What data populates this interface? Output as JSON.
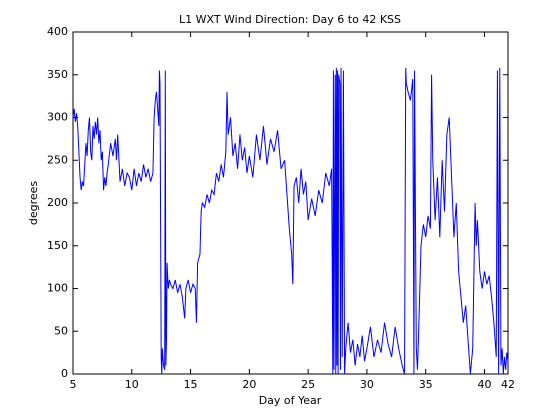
{
  "chart_data": {
    "type": "line",
    "title": "L1 WXT Wind Direction: Day 6 to 42 KSS",
    "xlabel": "Day of Year",
    "ylabel": "degrees",
    "xlim": [
      5,
      42
    ],
    "xticks": [
      5,
      10,
      15,
      20,
      25,
      30,
      35,
      40,
      42
    ],
    "ylim": [
      0,
      400
    ],
    "yticks": [
      0,
      50,
      100,
      150,
      200,
      250,
      300,
      350,
      400
    ],
    "grid": false,
    "x": [
      5.0,
      5.1,
      5.2,
      5.3,
      5.4,
      5.5,
      5.6,
      5.7,
      5.8,
      5.9,
      6.0,
      6.1,
      6.2,
      6.3,
      6.4,
      6.5,
      6.6,
      6.7,
      6.8,
      6.9,
      7.0,
      7.1,
      7.2,
      7.3,
      7.4,
      7.5,
      7.6,
      7.7,
      7.8,
      7.9,
      8.0,
      8.2,
      8.4,
      8.6,
      8.7,
      8.8,
      9.0,
      9.2,
      9.4,
      9.6,
      9.8,
      10.0,
      10.2,
      10.4,
      10.6,
      10.8,
      11.0,
      11.2,
      11.4,
      11.6,
      11.8,
      11.9,
      12.0,
      12.1,
      12.2,
      12.3,
      12.35,
      12.4,
      12.5,
      12.55,
      12.6,
      12.7,
      12.8,
      12.85,
      12.9,
      12.95,
      13.0,
      13.1,
      13.2,
      13.3,
      13.5,
      13.7,
      13.9,
      14.1,
      14.3,
      14.5,
      14.6,
      14.8,
      15.0,
      15.2,
      15.4,
      15.5,
      15.6,
      15.8,
      15.9,
      16.0,
      16.2,
      16.4,
      16.6,
      16.8,
      17.0,
      17.2,
      17.4,
      17.6,
      17.8,
      18.0,
      18.1,
      18.2,
      18.4,
      18.6,
      18.8,
      19.0,
      19.2,
      19.4,
      19.6,
      19.8,
      20.0,
      20.3,
      20.6,
      20.9,
      21.2,
      21.5,
      21.8,
      22.1,
      22.4,
      22.7,
      23.0,
      23.2,
      23.4,
      23.6,
      23.7,
      23.8,
      24.0,
      24.2,
      24.4,
      24.6,
      24.8,
      25.0,
      25.3,
      25.6,
      25.9,
      26.2,
      26.5,
      26.8,
      27.0,
      27.1,
      27.15,
      27.2,
      27.3,
      27.35,
      27.4,
      27.45,
      27.5,
      27.55,
      27.6,
      27.7,
      27.75,
      27.8,
      27.9,
      28.0,
      28.1,
      28.2,
      28.4,
      28.6,
      28.8,
      29.0,
      29.2,
      29.4,
      29.6,
      29.8,
      30.0,
      30.3,
      30.6,
      30.9,
      31.2,
      31.5,
      31.8,
      32.1,
      32.4,
      32.7,
      33.0,
      33.2,
      33.3,
      33.35,
      33.5,
      33.7,
      33.9,
      34.0,
      34.05,
      34.2,
      34.3,
      34.4,
      34.6,
      34.8,
      35.0,
      35.2,
      35.4,
      35.5,
      35.6,
      35.8,
      36.0,
      36.2,
      36.4,
      36.6,
      36.8,
      37.0,
      37.2,
      37.4,
      37.6,
      37.8,
      38.0,
      38.2,
      38.4,
      38.6,
      38.8,
      39.0,
      39.2,
      39.3,
      39.4,
      39.6,
      39.8,
      40.0,
      40.2,
      40.4,
      40.6,
      40.8,
      41.0,
      41.1,
      41.2,
      41.3,
      41.4,
      41.5,
      41.6,
      41.7,
      41.8,
      41.9,
      42.0
    ],
    "series": [
      {
        "name": "wind direction",
        "color": "#0000ff",
        "values": [
          300,
          310,
          295,
          305,
          290,
          260,
          230,
          215,
          225,
          220,
          245,
          270,
          255,
          285,
          300,
          260,
          250,
          290,
          275,
          295,
          280,
          300,
          270,
          285,
          250,
          260,
          215,
          230,
          220,
          235,
          245,
          270,
          255,
          275,
          250,
          280,
          225,
          240,
          220,
          235,
          230,
          215,
          240,
          220,
          235,
          225,
          245,
          230,
          240,
          225,
          235,
          300,
          320,
          330,
          310,
          290,
          355,
          340,
          20,
          0,
          30,
          10,
          5,
          355,
          10,
          40,
          130,
          100,
          110,
          105,
          100,
          110,
          95,
          105,
          90,
          65,
          100,
          110,
          95,
          105,
          100,
          60,
          130,
          140,
          190,
          200,
          195,
          210,
          200,
          215,
          210,
          235,
          225,
          245,
          230,
          260,
          330,
          280,
          300,
          255,
          270,
          240,
          280,
          250,
          265,
          235,
          255,
          230,
          280,
          250,
          290,
          245,
          275,
          260,
          285,
          240,
          250,
          210,
          170,
          140,
          105,
          220,
          230,
          200,
          240,
          210,
          225,
          180,
          205,
          185,
          215,
          200,
          235,
          220,
          240,
          0,
          355,
          5,
          350,
          0,
          358,
          10,
          355,
          0,
          350,
          340,
          5,
          358,
          20,
          355,
          0,
          30,
          60,
          25,
          40,
          10,
          35,
          20,
          45,
          15,
          30,
          55,
          20,
          40,
          25,
          60,
          35,
          20,
          55,
          30,
          10,
          0,
          358,
          340,
          330,
          320,
          345,
          0,
          355,
          30,
          5,
          50,
          150,
          175,
          160,
          185,
          170,
          350,
          250,
          180,
          230,
          160,
          250,
          190,
          280,
          300,
          230,
          160,
          200,
          120,
          90,
          60,
          80,
          40,
          0,
          30,
          200,
          150,
          180,
          120,
          100,
          120,
          105,
          115,
          90,
          60,
          20,
          355,
          0,
          358,
          10,
          30,
          0,
          20,
          5,
          25,
          15
        ]
      }
    ]
  }
}
